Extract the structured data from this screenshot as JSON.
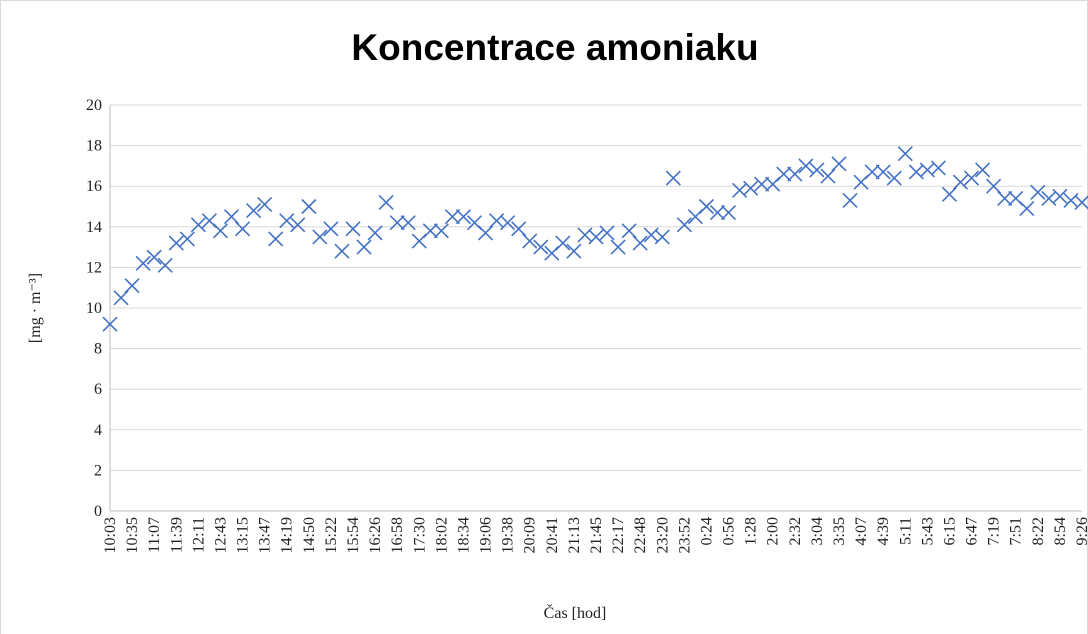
{
  "chart_data": {
    "type": "scatter",
    "title": "Koncentrace amoniaku",
    "x_label": "Čas [hod]",
    "y_label": "[mg · m⁻³]",
    "color": "#4472c4",
    "grid": true,
    "categories": [
      "10:03",
      null,
      "10:35",
      null,
      "11:07",
      null,
      "11:39",
      null,
      "12:11",
      null,
      "12:43",
      null,
      "13:15",
      null,
      "13:47",
      null,
      "14:19",
      null,
      "14:50",
      null,
      "15:22",
      null,
      "15:54",
      null,
      "16:26",
      null,
      "16:58",
      null,
      "17:30",
      null,
      "18:02",
      null,
      "18:34",
      null,
      "19:06",
      null,
      "19:38",
      null,
      "20:09",
      null,
      "20:41",
      null,
      "21:13",
      null,
      "21:45",
      null,
      "22:17",
      null,
      "22:48",
      null,
      "23:20",
      null,
      "23:52",
      null,
      "0:24",
      null,
      "0:56",
      null,
      "1:28",
      null,
      "2:00",
      null,
      "2:32",
      null,
      "3:04",
      null,
      "3:35",
      null,
      "4:07",
      null,
      "4:39",
      null,
      "5:11",
      null,
      "5:43",
      null,
      "6:15",
      null,
      "6:47",
      null,
      "7:19",
      null,
      "7:51",
      null,
      "8:22",
      null,
      "8:54",
      null,
      "9:26"
    ],
    "values": [
      9.2,
      10.5,
      11.1,
      12.2,
      12.5,
      12.1,
      13.2,
      13.4,
      14.1,
      14.3,
      13.8,
      14.5,
      13.9,
      14.8,
      15.1,
      13.4,
      14.3,
      14.1,
      15.0,
      13.5,
      13.9,
      12.8,
      13.9,
      13.0,
      13.7,
      15.2,
      14.2,
      14.2,
      13.3,
      13.8,
      13.8,
      14.5,
      14.5,
      14.2,
      13.7,
      14.3,
      14.2,
      13.9,
      13.3,
      13.0,
      12.7,
      13.2,
      12.8,
      13.6,
      13.5,
      13.7,
      13.0,
      13.8,
      13.2,
      13.6,
      13.5,
      16.4,
      14.1,
      14.5,
      15.0,
      14.7,
      14.7,
      15.8,
      15.9,
      16.1,
      16.1,
      16.6,
      16.6,
      17.0,
      16.8,
      16.5,
      17.1,
      15.3,
      16.2,
      16.7,
      16.7,
      16.4,
      17.6,
      16.7,
      16.8,
      16.9,
      15.6,
      16.2,
      16.4,
      16.8,
      16.0,
      15.4,
      15.4,
      14.9,
      15.7,
      15.4,
      15.5,
      15.3,
      15.2
    ],
    "ylim": [
      0,
      20
    ],
    "yticks": [
      0,
      2,
      4,
      6,
      8,
      10,
      12,
      14,
      16,
      18,
      20
    ]
  }
}
